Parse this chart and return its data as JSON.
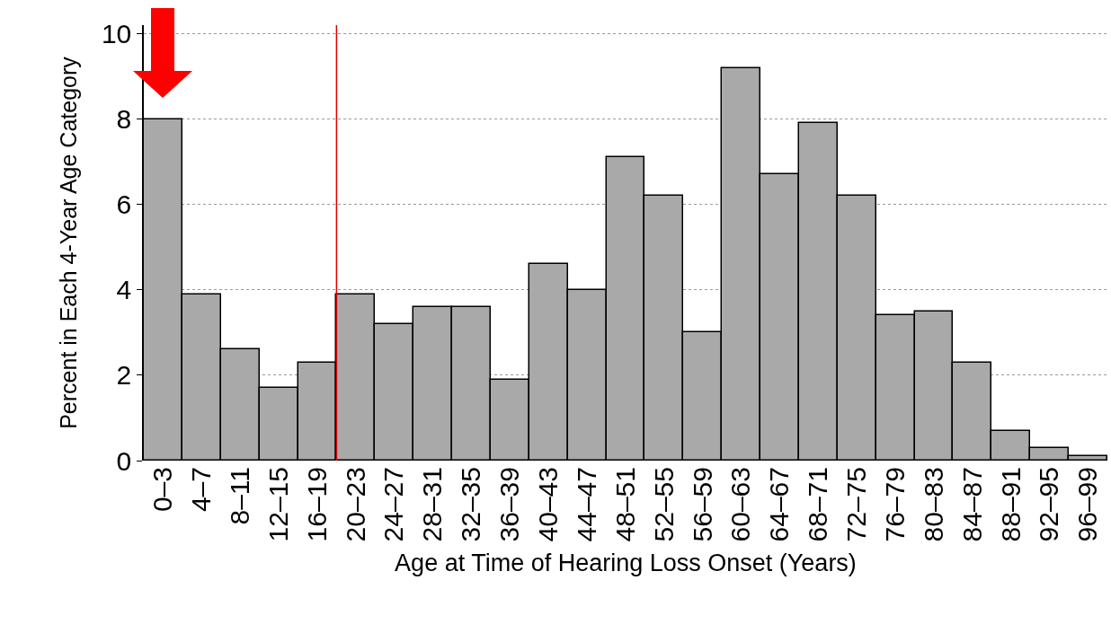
{
  "chart_data": {
    "type": "bar",
    "xlabel": "Age at Time of Hearing Loss Onset (Years)",
    "ylabel": "Percent in Each 4-Year Age Category",
    "categories": [
      "0–3",
      "4–7",
      "8–11",
      "12–15",
      "16–19",
      "20–23",
      "24–27",
      "28–31",
      "32–35",
      "36–39",
      "40–43",
      "44–47",
      "48–51",
      "52–55",
      "56–59",
      "60–63",
      "64–67",
      "68–71",
      "72–75",
      "76–79",
      "80–83",
      "84–87",
      "88–91",
      "92–95",
      "96–99"
    ],
    "values": [
      8.0,
      3.9,
      2.6,
      1.7,
      2.3,
      3.9,
      3.2,
      3.6,
      3.6,
      1.9,
      4.6,
      4.0,
      7.1,
      6.2,
      3.0,
      9.2,
      6.7,
      7.9,
      6.2,
      3.4,
      3.5,
      2.3,
      0.7,
      0.3,
      0.1
    ],
    "color": "#a9a9a9",
    "ylim": [
      0,
      10.2
    ],
    "yticks": [
      0,
      2,
      4,
      6,
      8,
      10
    ],
    "grid": "y",
    "ref_lines": [
      {
        "axis": "x",
        "value": "20–23",
        "color": "#e00000"
      }
    ]
  }
}
